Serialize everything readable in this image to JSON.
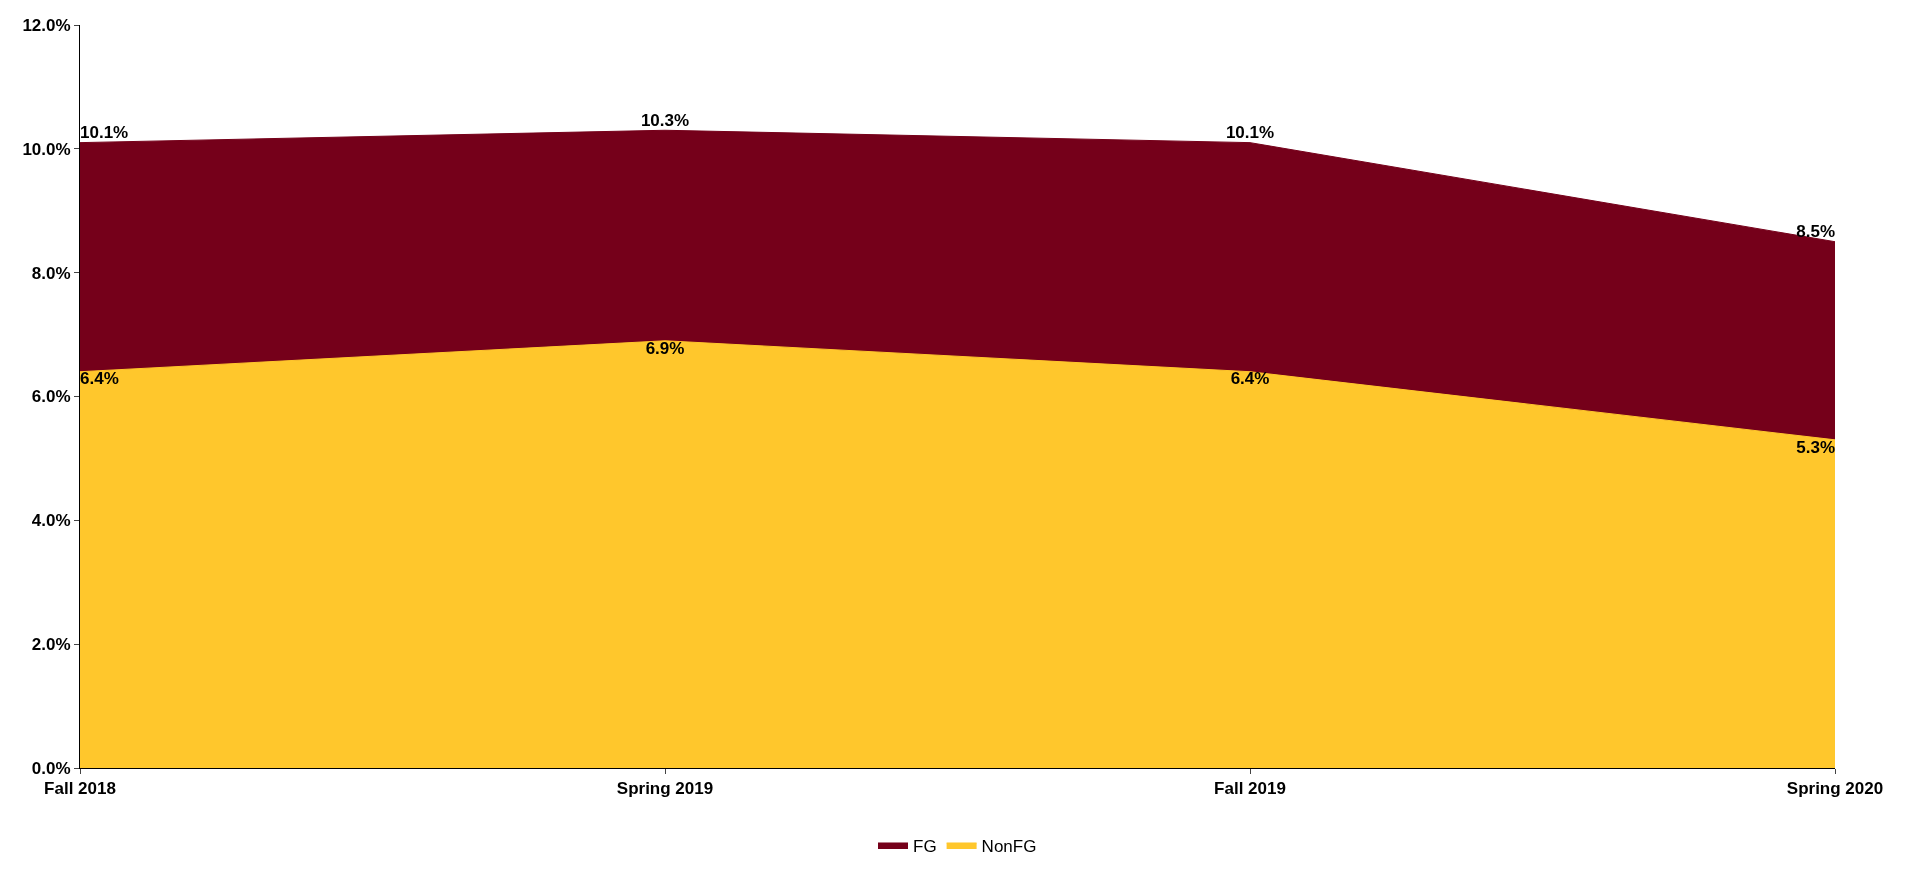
{
  "chart_data": {
    "type": "area",
    "categories": [
      "Fall 2018",
      "Spring 2019",
      "Fall 2019",
      "Spring 2020"
    ],
    "series": [
      {
        "name": "FG",
        "color": "#75001a",
        "values": [
          10.1,
          10.3,
          10.1,
          8.5
        ],
        "value_labels": [
          "10.1%",
          "10.3%",
          "10.1%",
          "8.5%"
        ]
      },
      {
        "name": "NonFG",
        "color": "#ffc72c",
        "values": [
          6.4,
          6.9,
          6.4,
          5.3
        ],
        "value_labels": [
          "6.4%",
          "6.9%",
          "6.4%",
          "5.3%"
        ]
      }
    ],
    "ylim": [
      0,
      12
    ],
    "yticks": [
      {
        "value": 0,
        "label": "0.0%"
      },
      {
        "value": 2,
        "label": "2.0%"
      },
      {
        "value": 4,
        "label": "4.0%"
      },
      {
        "value": 6,
        "label": "6.0%"
      },
      {
        "value": 8,
        "label": "8.0%"
      },
      {
        "value": 10,
        "label": "10.0%"
      },
      {
        "value": 12,
        "label": "12.0%"
      }
    ],
    "legend": "bottom"
  }
}
